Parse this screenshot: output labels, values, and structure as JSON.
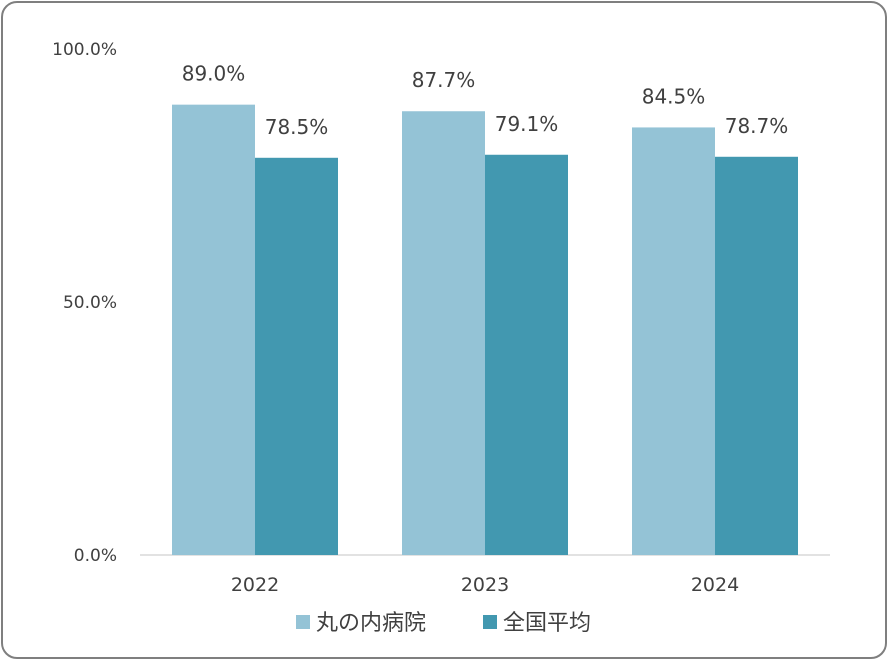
{
  "chart_data": {
    "type": "bar",
    "categories": [
      "2022",
      "2023",
      "2024"
    ],
    "series": [
      {
        "name": "丸の内病院",
        "values": [
          89.0,
          87.7,
          84.5
        ],
        "labels": [
          "89.0%",
          "87.7%",
          "84.5%"
        ],
        "color": "#94c3d6"
      },
      {
        "name": "全国平均",
        "values": [
          78.5,
          79.1,
          78.7
        ],
        "labels": [
          "78.5%",
          "79.1%",
          "78.7%"
        ],
        "color": "#4298b0"
      }
    ],
    "yticks": [
      0,
      50,
      100
    ],
    "ytick_labels": [
      "0.0%",
      "50.0%",
      "100.0%"
    ],
    "ylim": [
      0,
      100
    ],
    "grid": false,
    "legend_position": "bottom"
  }
}
